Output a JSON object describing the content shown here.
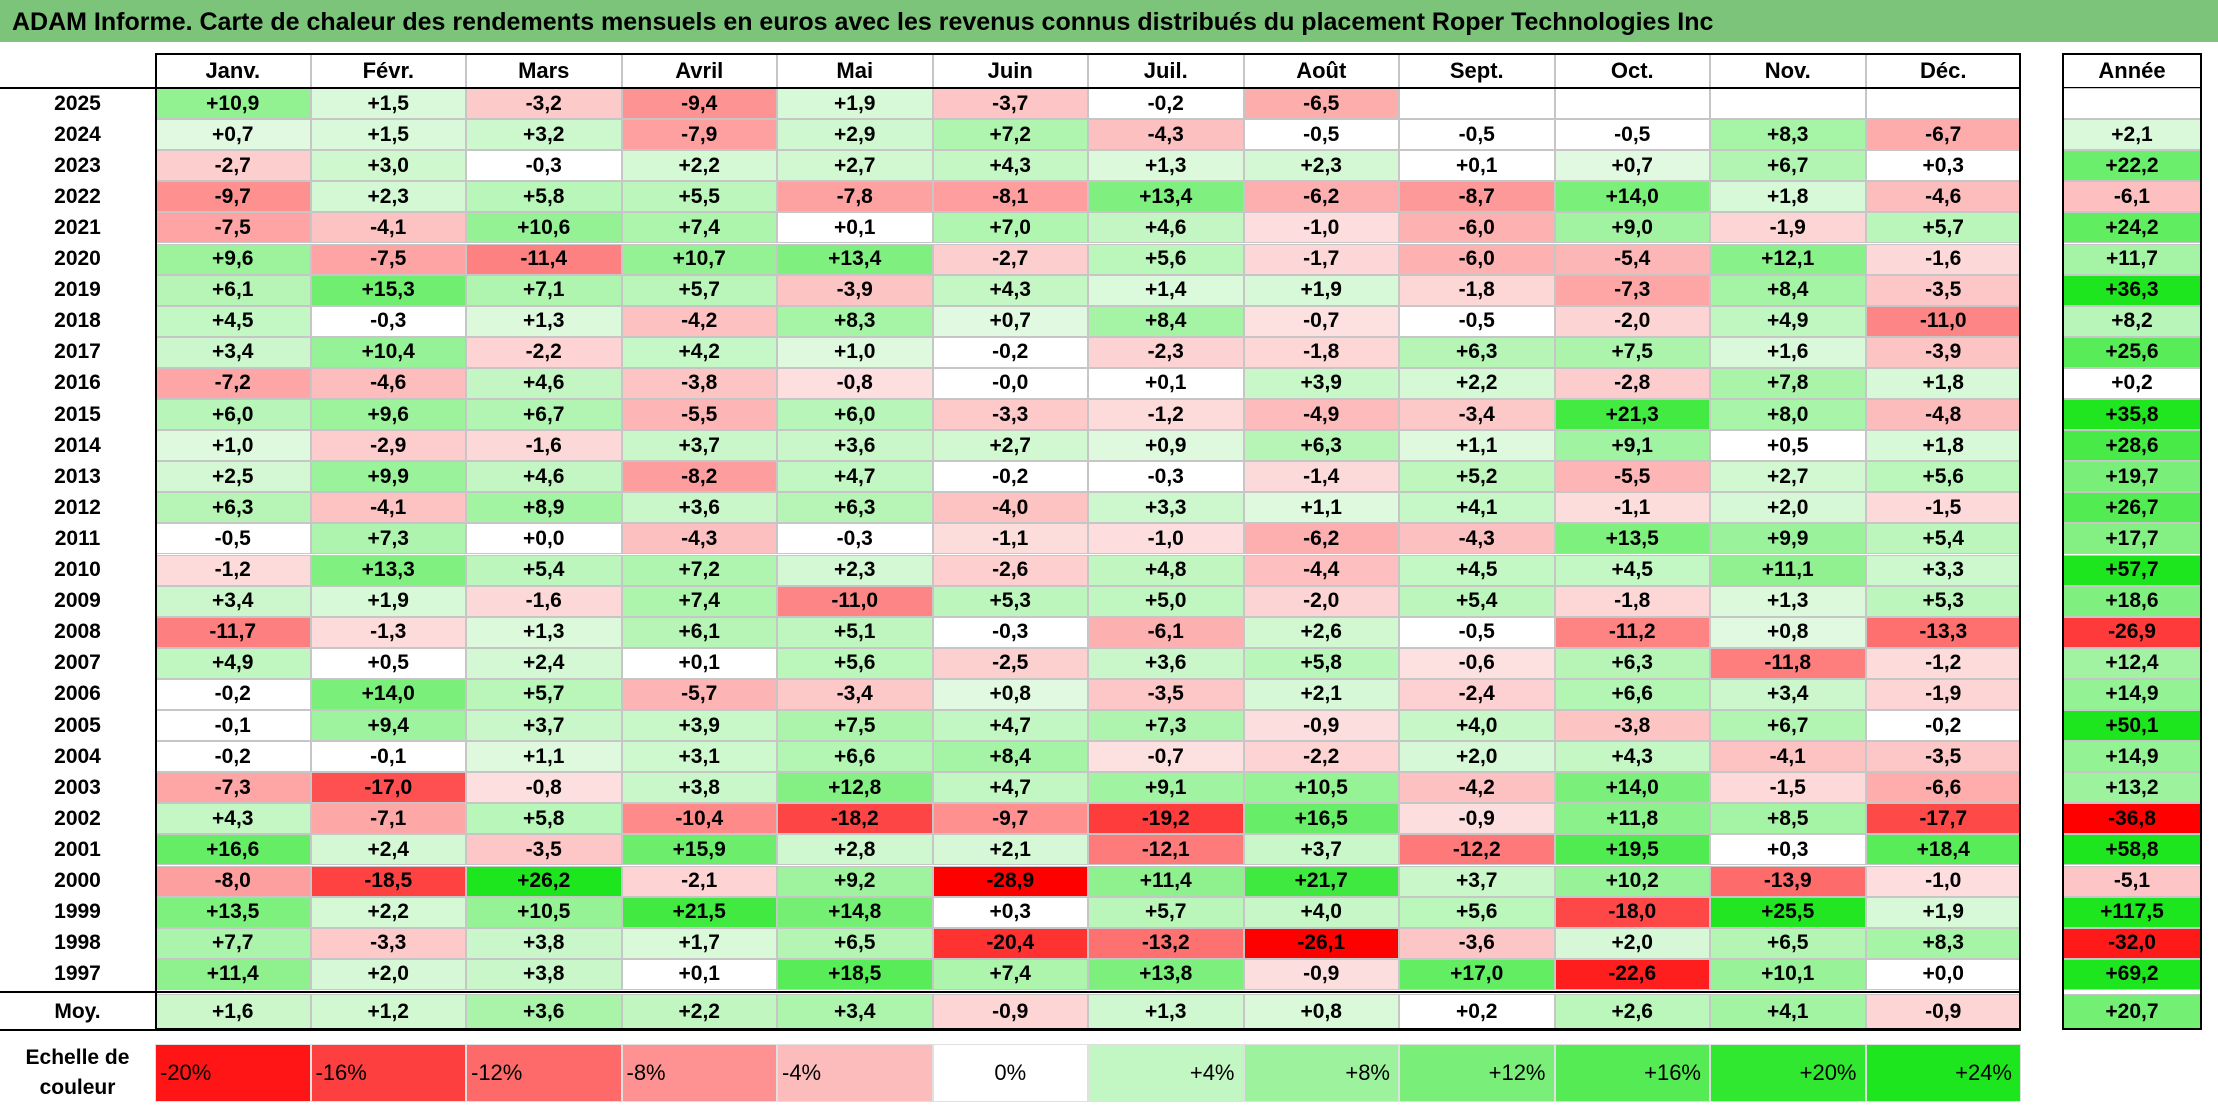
{
  "title": "ADAM Informe. Carte de chaleur des rendements mensuels en euros avec les revenus connus distribués du placement Roper Technologies Inc",
  "chart_data": {
    "type": "heatmap",
    "title": "ADAM Informe. Carte de chaleur des rendements mensuels en euros avec les revenus connus distribués du placement Roper Technologies Inc",
    "months": [
      "Janv.",
      "Févr.",
      "Mars",
      "Avril",
      "Mai",
      "Juin",
      "Juil.",
      "Août",
      "Sept.",
      "Oct.",
      "Nov.",
      "Déc."
    ],
    "year_header": "Année",
    "rows": [
      {
        "year": "2025",
        "values": [
          "+10,9",
          "+1,5",
          "-3,2",
          "-9,4",
          "+1,9",
          "-3,7",
          "-0,2",
          "-6,5",
          "",
          "",
          "",
          ""
        ],
        "annual": ""
      },
      {
        "year": "2024",
        "values": [
          "+0,7",
          "+1,5",
          "+3,2",
          "-7,9",
          "+2,9",
          "+7,2",
          "-4,3",
          "-0,5",
          "-0,5",
          "-0,5",
          "+8,3",
          "-6,7"
        ],
        "annual": "+2,1"
      },
      {
        "year": "2023",
        "values": [
          "-2,7",
          "+3,0",
          "-0,3",
          "+2,2",
          "+2,7",
          "+4,3",
          "+1,3",
          "+2,3",
          "+0,1",
          "+0,7",
          "+6,7",
          "+0,3"
        ],
        "annual": "+22,2"
      },
      {
        "year": "2022",
        "values": [
          "-9,7",
          "+2,3",
          "+5,8",
          "+5,5",
          "-7,8",
          "-8,1",
          "+13,4",
          "-6,2",
          "-8,7",
          "+14,0",
          "+1,8",
          "-4,6"
        ],
        "annual": "-6,1"
      },
      {
        "year": "2021",
        "values": [
          "-7,5",
          "-4,1",
          "+10,6",
          "+7,4",
          "+0,1",
          "+7,0",
          "+4,6",
          "-1,0",
          "-6,0",
          "+9,0",
          "-1,9",
          "+5,7"
        ],
        "annual": "+24,2"
      },
      {
        "year": "2020",
        "values": [
          "+9,6",
          "-7,5",
          "-11,4",
          "+10,7",
          "+13,4",
          "-2,7",
          "+5,6",
          "-1,7",
          "-6,0",
          "-5,4",
          "+12,1",
          "-1,6"
        ],
        "annual": "+11,7"
      },
      {
        "year": "2019",
        "values": [
          "+6,1",
          "+15,3",
          "+7,1",
          "+5,7",
          "-3,9",
          "+4,3",
          "+1,4",
          "+1,9",
          "-1,8",
          "-7,3",
          "+8,4",
          "-3,5"
        ],
        "annual": "+36,3"
      },
      {
        "year": "2018",
        "values": [
          "+4,5",
          "-0,3",
          "+1,3",
          "-4,2",
          "+8,3",
          "+0,7",
          "+8,4",
          "-0,7",
          "-0,5",
          "-2,0",
          "+4,9",
          "-11,0"
        ],
        "annual": "+8,2"
      },
      {
        "year": "2017",
        "values": [
          "+3,4",
          "+10,4",
          "-2,2",
          "+4,2",
          "+1,0",
          "-0,2",
          "-2,3",
          "-1,8",
          "+6,3",
          "+7,5",
          "+1,6",
          "-3,9"
        ],
        "annual": "+25,6"
      },
      {
        "year": "2016",
        "values": [
          "-7,2",
          "-4,6",
          "+4,6",
          "-3,8",
          "-0,8",
          "-0,0",
          "+0,1",
          "+3,9",
          "+2,2",
          "-2,8",
          "+7,8",
          "+1,8"
        ],
        "annual": "+0,2"
      },
      {
        "year": "2015",
        "values": [
          "+6,0",
          "+9,6",
          "+6,7",
          "-5,5",
          "+6,0",
          "-3,3",
          "-1,2",
          "-4,9",
          "-3,4",
          "+21,3",
          "+8,0",
          "-4,8"
        ],
        "annual": "+35,8"
      },
      {
        "year": "2014",
        "values": [
          "+1,0",
          "-2,9",
          "-1,6",
          "+3,7",
          "+3,6",
          "+2,7",
          "+0,9",
          "+6,3",
          "+1,1",
          "+9,1",
          "+0,5",
          "+1,8"
        ],
        "annual": "+28,6"
      },
      {
        "year": "2013",
        "values": [
          "+2,5",
          "+9,9",
          "+4,6",
          "-8,2",
          "+4,7",
          "-0,2",
          "-0,3",
          "-1,4",
          "+5,2",
          "-5,5",
          "+2,7",
          "+5,6"
        ],
        "annual": "+19,7"
      },
      {
        "year": "2012",
        "values": [
          "+6,3",
          "-4,1",
          "+8,9",
          "+3,6",
          "+6,3",
          "-4,0",
          "+3,3",
          "+1,1",
          "+4,1",
          "-1,1",
          "+2,0",
          "-1,5"
        ],
        "annual": "+26,7"
      },
      {
        "year": "2011",
        "values": [
          "-0,5",
          "+7,3",
          "+0,0",
          "-4,3",
          "-0,3",
          "-1,1",
          "-1,0",
          "-6,2",
          "-4,3",
          "+13,5",
          "+9,9",
          "+5,4"
        ],
        "annual": "+17,7"
      },
      {
        "year": "2010",
        "values": [
          "-1,2",
          "+13,3",
          "+5,4",
          "+7,2",
          "+2,3",
          "-2,6",
          "+4,8",
          "-4,4",
          "+4,5",
          "+4,5",
          "+11,1",
          "+3,3"
        ],
        "annual": "+57,7"
      },
      {
        "year": "2009",
        "values": [
          "+3,4",
          "+1,9",
          "-1,6",
          "+7,4",
          "-11,0",
          "+5,3",
          "+5,0",
          "-2,0",
          "+5,4",
          "-1,8",
          "+1,3",
          "+5,3"
        ],
        "annual": "+18,6"
      },
      {
        "year": "2008",
        "values": [
          "-11,7",
          "-1,3",
          "+1,3",
          "+6,1",
          "+5,1",
          "-0,3",
          "-6,1",
          "+2,6",
          "-0,5",
          "-11,2",
          "+0,8",
          "-13,3"
        ],
        "annual": "-26,9"
      },
      {
        "year": "2007",
        "values": [
          "+4,9",
          "+0,5",
          "+2,4",
          "+0,1",
          "+5,6",
          "-2,5",
          "+3,6",
          "+5,8",
          "-0,6",
          "+6,3",
          "-11,8",
          "-1,2"
        ],
        "annual": "+12,4"
      },
      {
        "year": "2006",
        "values": [
          "-0,2",
          "+14,0",
          "+5,7",
          "-5,7",
          "-3,4",
          "+0,8",
          "-3,5",
          "+2,1",
          "-2,4",
          "+6,6",
          "+3,4",
          "-1,9"
        ],
        "annual": "+14,9"
      },
      {
        "year": "2005",
        "values": [
          "-0,1",
          "+9,4",
          "+3,7",
          "+3,9",
          "+7,5",
          "+4,7",
          "+7,3",
          "-0,9",
          "+4,0",
          "-3,8",
          "+6,7",
          "-0,2"
        ],
        "annual": "+50,1"
      },
      {
        "year": "2004",
        "values": [
          "-0,2",
          "-0,1",
          "+1,1",
          "+3,1",
          "+6,6",
          "+8,4",
          "-0,7",
          "-2,2",
          "+2,0",
          "+4,3",
          "-4,1",
          "-3,5"
        ],
        "annual": "+14,9"
      },
      {
        "year": "2003",
        "values": [
          "-7,3",
          "-17,0",
          "-0,8",
          "+3,8",
          "+12,8",
          "+4,7",
          "+9,1",
          "+10,5",
          "-4,2",
          "+14,0",
          "-1,5",
          "-6,6"
        ],
        "annual": "+13,2"
      },
      {
        "year": "2002",
        "values": [
          "+4,3",
          "-7,1",
          "+5,8",
          "-10,4",
          "-18,2",
          "-9,7",
          "-19,2",
          "+16,5",
          "-0,9",
          "+11,8",
          "+8,5",
          "-17,7"
        ],
        "annual": "-36,8"
      },
      {
        "year": "2001",
        "values": [
          "+16,6",
          "+2,4",
          "-3,5",
          "+15,9",
          "+2,8",
          "+2,1",
          "-12,1",
          "+3,7",
          "-12,2",
          "+19,5",
          "+0,3",
          "+18,4"
        ],
        "annual": "+58,8"
      },
      {
        "year": "2000",
        "values": [
          "-8,0",
          "-18,5",
          "+26,2",
          "-2,1",
          "+9,2",
          "-28,9",
          "+11,4",
          "+21,7",
          "+3,7",
          "+10,2",
          "-13,9",
          "-1,0"
        ],
        "annual": "-5,1"
      },
      {
        "year": "1999",
        "values": [
          "+13,5",
          "+2,2",
          "+10,5",
          "+21,5",
          "+14,8",
          "+0,3",
          "+5,7",
          "+4,0",
          "+5,6",
          "-18,0",
          "+25,5",
          "+1,9"
        ],
        "annual": "+117,5"
      },
      {
        "year": "1998",
        "values": [
          "+7,7",
          "-3,3",
          "+3,8",
          "+1,7",
          "+6,5",
          "-20,4",
          "-13,2",
          "-26,1",
          "-3,6",
          "+2,0",
          "+6,5",
          "+8,3"
        ],
        "annual": "-32,0"
      },
      {
        "year": "1997",
        "values": [
          "+11,4",
          "+2,0",
          "+3,8",
          "+0,1",
          "+18,5",
          "+7,4",
          "+13,8",
          "-0,9",
          "+17,0",
          "-22,6",
          "+10,1",
          "+0,0"
        ],
        "annual": "+69,2"
      }
    ],
    "average": {
      "label": "Moy.",
      "values": [
        "+1,6",
        "+1,2",
        "+3,6",
        "+2,2",
        "+3,4",
        "-0,9",
        "+1,3",
        "+0,8",
        "+0,2",
        "+2,6",
        "+4,1",
        "-0,9"
      ],
      "annual": "+20,7"
    },
    "scale": {
      "label": "Echelle de couleur",
      "steps": [
        "-20%",
        "-16%",
        "-12%",
        "-8%",
        "-4%",
        "0%",
        "+4%",
        "+8%",
        "+12%",
        "+16%",
        "+20%",
        "+24%"
      ]
    }
  },
  "colors": {
    "title_bg": "#7cc47a",
    "negative_max": "#ff0000",
    "positive_max": "#00e600",
    "neutral": "#ffffff"
  }
}
